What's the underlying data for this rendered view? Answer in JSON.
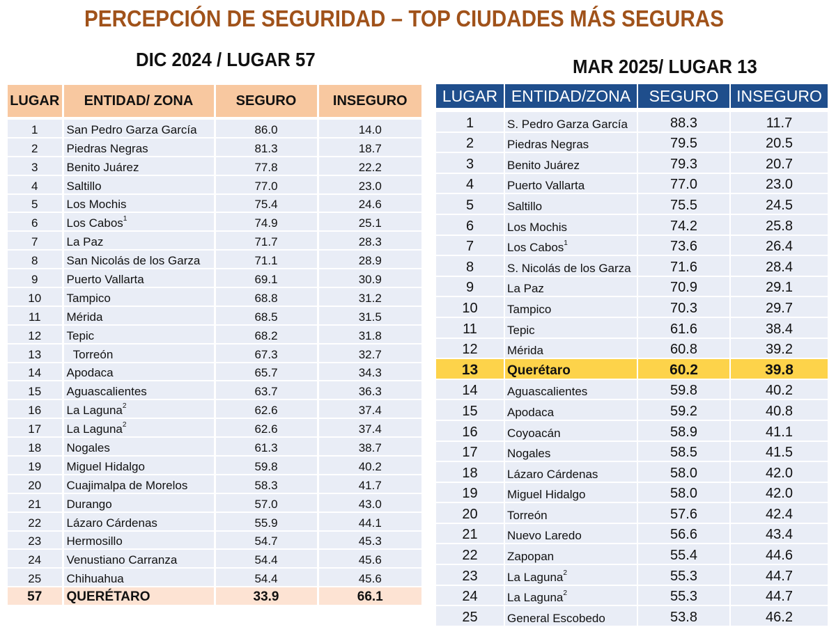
{
  "title": "PERCEPCIÓN DE SEGURIDAD – TOP CIUDADES MÁS SEGURAS",
  "left": {
    "subtitle": "DIC 2024 / LUGAR 57",
    "headers": [
      "LUGAR",
      "ENTIDAD/ ZONA",
      "SEGURO",
      "INSEGURO"
    ],
    "rows": [
      {
        "rank": "1",
        "zone": "San Pedro Garza García",
        "sup": "",
        "safe": "86.0",
        "unsafe": "14.0"
      },
      {
        "rank": "2",
        "zone": "Piedras Negras",
        "sup": "",
        "safe": "81.3",
        "unsafe": "18.7"
      },
      {
        "rank": "3",
        "zone": "Benito Juárez",
        "sup": "",
        "safe": "77.8",
        "unsafe": "22.2"
      },
      {
        "rank": "4",
        "zone": "Saltillo",
        "sup": "",
        "safe": "77.0",
        "unsafe": "23.0"
      },
      {
        "rank": "5",
        "zone": "Los Mochis",
        "sup": "",
        "safe": "75.4",
        "unsafe": "24.6"
      },
      {
        "rank": "6",
        "zone": "Los Cabos",
        "sup": "1",
        "safe": "74.9",
        "unsafe": "25.1"
      },
      {
        "rank": "7",
        "zone": "La Paz",
        "sup": "",
        "safe": "71.7",
        "unsafe": "28.3"
      },
      {
        "rank": "8",
        "zone": "San Nicolás de los Garza",
        "sup": "",
        "safe": "71.1",
        "unsafe": "28.9"
      },
      {
        "rank": "9",
        "zone": "Puerto Vallarta",
        "sup": "",
        "safe": "69.1",
        "unsafe": "30.9"
      },
      {
        "rank": "10",
        "zone": "Tampico",
        "sup": "",
        "safe": "68.8",
        "unsafe": "31.2"
      },
      {
        "rank": "11",
        "zone": "Mérida",
        "sup": "",
        "safe": "68.5",
        "unsafe": "31.5"
      },
      {
        "rank": "12",
        "zone": "Tepic",
        "sup": "",
        "safe": "68.2",
        "unsafe": "31.8"
      },
      {
        "rank": "13",
        "zone": "  Torreón",
        "sup": "",
        "safe": "67.3",
        "unsafe": "32.7"
      },
      {
        "rank": "14",
        "zone": "Apodaca",
        "sup": "",
        "safe": "65.7",
        "unsafe": "34.3"
      },
      {
        "rank": "15",
        "zone": "Aguascalientes",
        "sup": "",
        "safe": "63.7",
        "unsafe": "36.3"
      },
      {
        "rank": "16",
        "zone": "La Laguna",
        "sup": "2",
        "safe": "62.6",
        "unsafe": "37.4"
      },
      {
        "rank": "17",
        "zone": "La Laguna",
        "sup": "2",
        "safe": "62.6",
        "unsafe": "37.4"
      },
      {
        "rank": "18",
        "zone": "Nogales",
        "sup": "",
        "safe": "61.3",
        "unsafe": "38.7"
      },
      {
        "rank": "19",
        "zone": "Miguel Hidalgo",
        "sup": "",
        "safe": "59.8",
        "unsafe": "40.2"
      },
      {
        "rank": "20",
        "zone": "Cuajimalpa de Morelos",
        "sup": "",
        "safe": "58.3",
        "unsafe": "41.7"
      },
      {
        "rank": "21",
        "zone": "Durango",
        "sup": "",
        "safe": "57.0",
        "unsafe": "43.0"
      },
      {
        "rank": "22",
        "zone": "Lázaro Cárdenas",
        "sup": "",
        "safe": "55.9",
        "unsafe": "44.1"
      },
      {
        "rank": "23",
        "zone": "Hermosillo",
        "sup": "",
        "safe": "54.7",
        "unsafe": "45.3"
      },
      {
        "rank": "24",
        "zone": "Venustiano Carranza",
        "sup": "",
        "safe": "54.4",
        "unsafe": "45.6"
      },
      {
        "rank": "25",
        "zone": "Chihuahua",
        "sup": "",
        "safe": "54.4",
        "unsafe": "45.6"
      }
    ],
    "highlight": {
      "rank": "57",
      "zone": "QUERÉTARO",
      "safe": "33.9",
      "unsafe": "66.1"
    },
    "highlight_color": "#fde3d3",
    "header_color": "#f8c8a0"
  },
  "right": {
    "subtitle": "MAR 2025/ LUGAR 13",
    "headers": [
      "LUGAR",
      "ENTIDAD/ZONA",
      "SEGURO",
      "INSEGURO"
    ],
    "rows": [
      {
        "rank": "1",
        "zone": "S. Pedro Garza García",
        "sup": "",
        "safe": "88.3",
        "unsafe": "11.7"
      },
      {
        "rank": "2",
        "zone": "Piedras Negras",
        "sup": "",
        "safe": "79.5",
        "unsafe": "20.5"
      },
      {
        "rank": "3",
        "zone": "Benito Juárez",
        "sup": "",
        "safe": "79.3",
        "unsafe": "20.7"
      },
      {
        "rank": "4",
        "zone": "Puerto Vallarta",
        "sup": "",
        "safe": "77.0",
        "unsafe": "23.0"
      },
      {
        "rank": "5",
        "zone": "Saltillo",
        "sup": "",
        "safe": "75.5",
        "unsafe": "24.5"
      },
      {
        "rank": "6",
        "zone": "Los Mochis",
        "sup": "",
        "safe": "74.2",
        "unsafe": "25.8"
      },
      {
        "rank": "7",
        "zone": "Los Cabos",
        "sup": "1",
        "safe": "73.6",
        "unsafe": "26.4"
      },
      {
        "rank": "8",
        "zone": "S. Nicolás de los Garza",
        "sup": "",
        "safe": "71.6",
        "unsafe": "28.4"
      },
      {
        "rank": "9",
        "zone": "La Paz",
        "sup": "",
        "safe": "70.9",
        "unsafe": "29.1"
      },
      {
        "rank": "10",
        "zone": "Tampico",
        "sup": "",
        "safe": "70.3",
        "unsafe": "29.7"
      },
      {
        "rank": "11",
        "zone": "Tepic",
        "sup": "",
        "safe": "61.6",
        "unsafe": "38.4"
      },
      {
        "rank": "12",
        "zone": "Mérida",
        "sup": "",
        "safe": "60.8",
        "unsafe": "39.2"
      },
      {
        "rank": "13",
        "zone": "Querétaro",
        "sup": "",
        "safe": "60.2",
        "unsafe": "39.8",
        "highlight": true
      },
      {
        "rank": "14",
        "zone": "Aguascalientes",
        "sup": "",
        "safe": "59.8",
        "unsafe": "40.2"
      },
      {
        "rank": "15",
        "zone": "Apodaca",
        "sup": "",
        "safe": "59.2",
        "unsafe": "40.8"
      },
      {
        "rank": "16",
        "zone": "Coyoacán",
        "sup": "",
        "safe": "58.9",
        "unsafe": "41.1"
      },
      {
        "rank": "17",
        "zone": "Nogales",
        "sup": "",
        "safe": "58.5",
        "unsafe": "41.5"
      },
      {
        "rank": "18",
        "zone": "Lázaro Cárdenas",
        "sup": "",
        "safe": "58.0",
        "unsafe": "42.0"
      },
      {
        "rank": "19",
        "zone": "Miguel Hidalgo",
        "sup": "",
        "safe": "58.0",
        "unsafe": "42.0"
      },
      {
        "rank": "20",
        "zone": "Torreón",
        "sup": "",
        "safe": "57.6",
        "unsafe": "42.4"
      },
      {
        "rank": "21",
        "zone": "Nuevo Laredo",
        "sup": "",
        "safe": "56.6",
        "unsafe": "43.4"
      },
      {
        "rank": "22",
        "zone": "Zapopan",
        "sup": "",
        "safe": "55.4",
        "unsafe": "44.6"
      },
      {
        "rank": "23",
        "zone": "La Laguna",
        "sup": "2",
        "safe": "55.3",
        "unsafe": "44.7"
      },
      {
        "rank": "24",
        "zone": "La Laguna",
        "sup": "2",
        "safe": "55.3",
        "unsafe": "44.7"
      },
      {
        "rank": "25",
        "zone": "General Escobedo",
        "sup": "",
        "safe": "53.8",
        "unsafe": "46.2"
      }
    ],
    "highlight_color": "#fdd34a",
    "header_color": "#1f4e8c"
  }
}
